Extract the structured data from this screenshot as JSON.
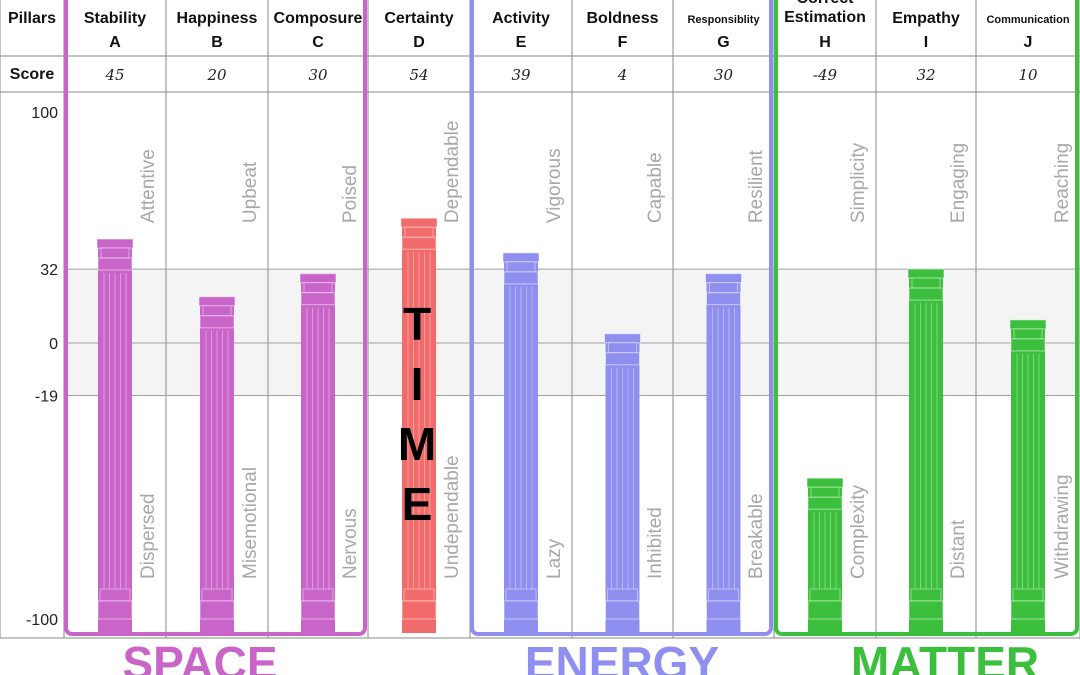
{
  "chart_data": {
    "type": "bar",
    "row_labels": {
      "pillars": "Pillars",
      "score": "Score"
    },
    "categories": [
      {
        "name": "Stability",
        "letter": "A",
        "score_label": "45",
        "value": 45,
        "top_trait": "Attentive",
        "bottom_trait": "Dispersed",
        "group": "space"
      },
      {
        "name": "Happiness",
        "letter": "B",
        "score_label": "20",
        "value": 20,
        "top_trait": "Upbeat",
        "bottom_trait": "Misemotional",
        "group": "space"
      },
      {
        "name": "Composure",
        "letter": "C",
        "score_label": "30",
        "value": 30,
        "top_trait": "Poised",
        "bottom_trait": "Nervous",
        "group": "space"
      },
      {
        "name": "Certainty",
        "letter": "D",
        "score_label": "54",
        "value": 54,
        "top_trait": "Dependable",
        "bottom_trait": "Undependable",
        "group": "time"
      },
      {
        "name": "Activity",
        "letter": "E",
        "score_label": "39",
        "value": 39,
        "top_trait": "Vigorous",
        "bottom_trait": "Lazy",
        "group": "energy"
      },
      {
        "name": "Boldness",
        "letter": "F",
        "score_label": "4",
        "value": 4,
        "top_trait": "Capable",
        "bottom_trait": "Inhibited",
        "group": "energy"
      },
      {
        "name": "Responsiblity",
        "letter": "G",
        "score_label": "30",
        "value": 30,
        "top_trait": "Resilient",
        "bottom_trait": "Breakable",
        "group": "energy"
      },
      {
        "name": "Estimation",
        "letter": "H",
        "score_label": "-49",
        "value": -49,
        "top_trait": "Simplicity",
        "bottom_trait": "Complexity",
        "group": "matter"
      },
      {
        "name": "Empathy",
        "letter": "I",
        "score_label": "32",
        "value": 32,
        "top_trait": "Engaging",
        "bottom_trait": "Distant",
        "group": "matter"
      },
      {
        "name": "Communication",
        "letter": "J",
        "score_label": "10",
        "value": 10,
        "top_trait": "Reaching",
        "bottom_trait": "Withdrawing",
        "group": "matter"
      }
    ],
    "header_fragment": "Correct",
    "yticks": [
      100,
      32,
      0,
      -19,
      -100
    ],
    "ylim": [
      -100,
      100
    ],
    "groups": [
      {
        "key": "space",
        "label": "SPACE",
        "color": "#c965c9"
      },
      {
        "key": "time",
        "label": "TIME",
        "color": "#f26b6b"
      },
      {
        "key": "energy",
        "label": "ENERGY",
        "color": "#8f8ff0"
      },
      {
        "key": "matter",
        "label": "MATTER",
        "color": "#3cbf3c"
      }
    ]
  }
}
